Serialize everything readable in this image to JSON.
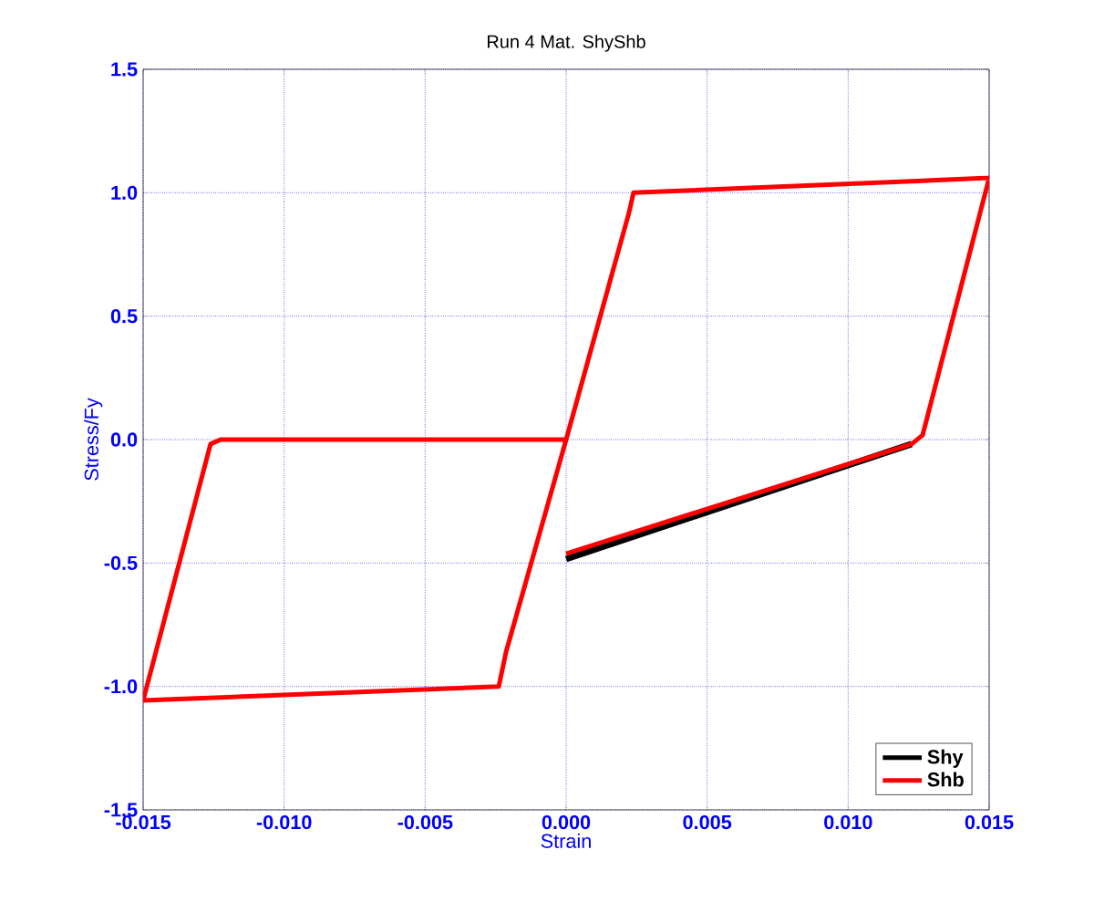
{
  "chart_data": {
    "type": "line",
    "title": "Run 4   Mat. ShyShb",
    "xlabel": "Strain",
    "ylabel": "Stress/Fy",
    "xlim": [
      -0.015,
      0.015
    ],
    "ylim": [
      -1.5,
      1.5
    ],
    "xticks": [
      -0.015,
      {
        "value": -0.01,
        "label": "-0.010"
      },
      -0.005,
      {
        "value": 0,
        "label": "0.000"
      },
      0.005,
      {
        "value": 0.01,
        "label": "0.010"
      },
      0.015
    ],
    "yticks": [
      -1.5,
      {
        "value": -1,
        "label": "-1.0"
      },
      -0.5,
      {
        "value": 0,
        "label": "0.0"
      },
      0.5,
      {
        "value": 1,
        "label": "1.0"
      },
      1.5
    ],
    "grid": true,
    "legend": "bottom right",
    "line_style": "solid",
    "marker": "none",
    "series": [
      {
        "name": "Shy",
        "color": "#000000",
        "x": [
          0.01225,
          0
        ],
        "values": [
          -0.018,
          -0.484
        ]
      },
      {
        "name": "Shb",
        "color": "#ff0000",
        "x": [
          0,
          -0.00213,
          -0.00239,
          -0.015,
          -0.01261,
          -0.01225,
          0,
          0.00223,
          0.00239,
          0.015,
          0.01264,
          0.01225,
          0
        ],
        "values": [
          0,
          -0.86,
          -1.0,
          -1.057,
          -0.018,
          0,
          0,
          0.92,
          1.0,
          1.06,
          0.018,
          -0.018,
          -0.462
        ]
      }
    ]
  }
}
